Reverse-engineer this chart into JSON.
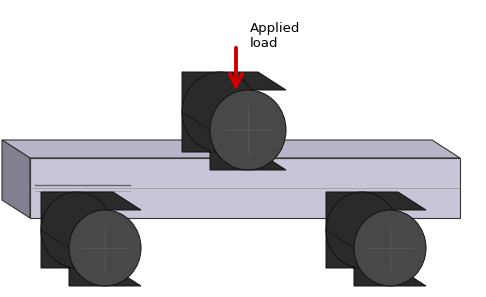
{
  "bg_color": "#ffffff",
  "beam_top_color": "#b8b5c8",
  "beam_face_color": "#c8c5d8",
  "beam_side_color": "#808090",
  "beam_edge_color": "#333333",
  "roller_dark_color": "#2a2a2a",
  "roller_mid_color": "#404040",
  "roller_face_color": "#484848",
  "roller_edge_color": "#111111",
  "roller_line_color": "#5a5a5a",
  "arrow_color": "#cc0000",
  "text_color": "#000000",
  "label_text": "Applied\nload",
  "label_fontsize": 9.5,
  "crack_color": "#666666"
}
